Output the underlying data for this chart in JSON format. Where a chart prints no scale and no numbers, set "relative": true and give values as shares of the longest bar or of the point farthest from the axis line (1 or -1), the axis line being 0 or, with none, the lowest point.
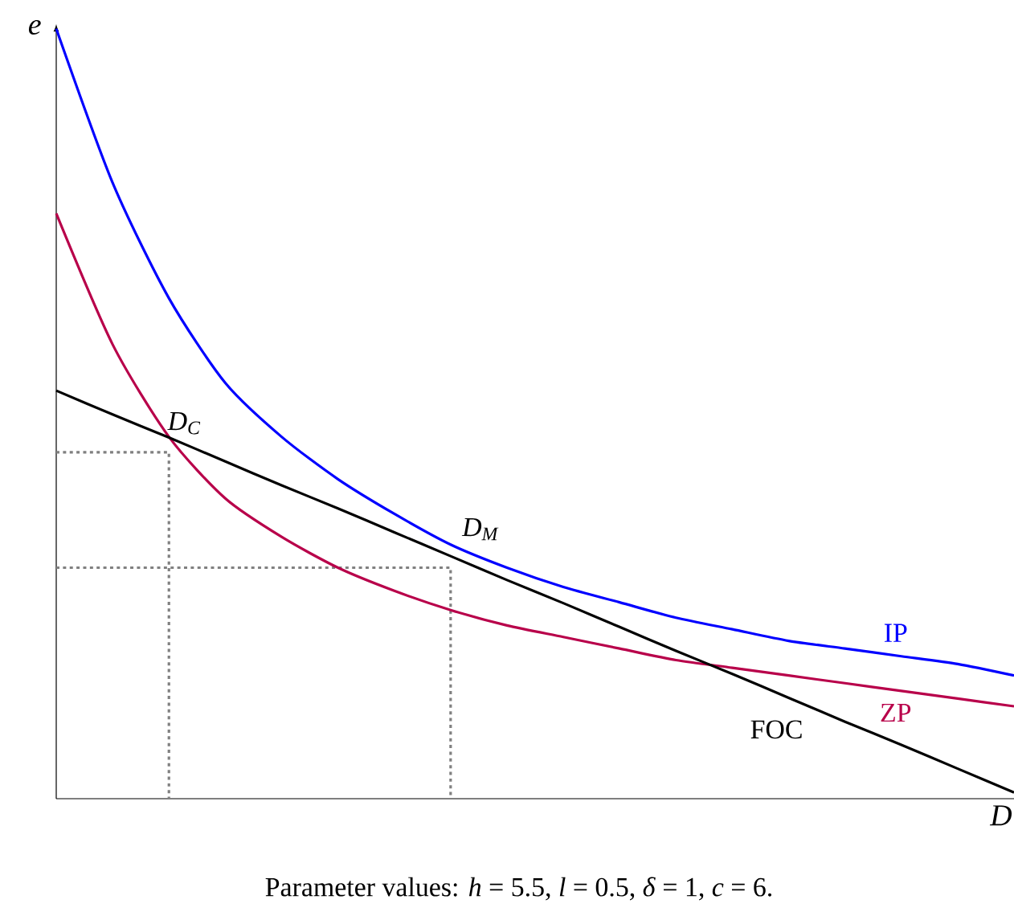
{
  "chart_data": {
    "type": "line",
    "relative": true,
    "xlabel": "D",
    "ylabel": "e",
    "categories": [
      null,
      null,
      null,
      null,
      null,
      null,
      null,
      null,
      null,
      null,
      null,
      null,
      null,
      null,
      null,
      null,
      null,
      null
    ],
    "series": [
      {
        "name": "IP",
        "color": "#0000ff",
        "values": [
          1,
          0.8,
          0.65,
          0.54,
          0.47,
          0.415,
          0.37,
          0.33,
          0.3,
          0.275,
          0.255,
          0.235,
          0.22,
          0.205,
          0.195,
          0.185,
          0.175,
          0.16
        ]
      },
      {
        "name": "ZP",
        "color": "#b8004a",
        "values": [
          0.76,
          0.59,
          0.47,
          0.39,
          0.34,
          0.3,
          0.27,
          0.245,
          0.225,
          0.21,
          0.195,
          0.18,
          0.17,
          0.16,
          0.15,
          0.14,
          0.13,
          0.12
        ]
      },
      {
        "name": "FOC",
        "color": "#000000",
        "values": [
          0.53,
          0.499,
          0.469,
          0.438,
          0.407,
          0.377,
          0.346,
          0.315,
          0.284,
          0.254,
          0.223,
          0.192,
          0.162,
          0.131,
          0.1,
          0.07,
          0.039,
          0.008
        ]
      }
    ],
    "ref_lines": [
      {
        "axis": "y",
        "value": 0.45,
        "color": "#808080",
        "line_style": "dotted"
      },
      {
        "axis": "y",
        "value": 0.3,
        "color": "#808080",
        "line_style": "dotted"
      }
    ],
    "annotations": [
      "D$_{C}$",
      "D$_{M}$",
      "Parameter values: *h* = 5.5, *l* = 0.5, *δ* = 1, *c* = 6."
    ]
  }
}
